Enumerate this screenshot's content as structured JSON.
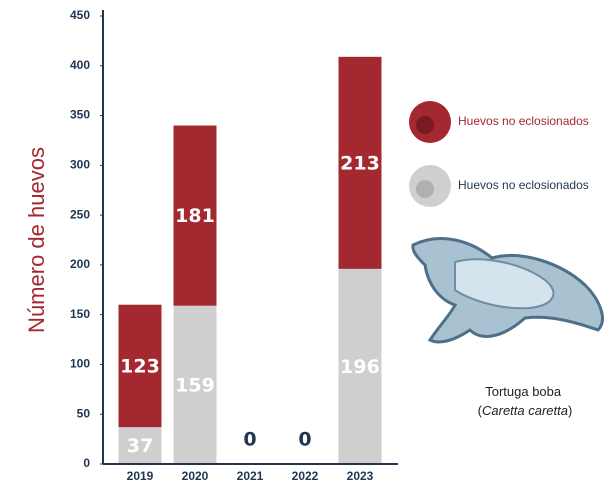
{
  "chart_data": {
    "type": "stacked_bar",
    "y_label": "Número de huevos",
    "categories": [
      "2019",
      "2020",
      "2021",
      "2022",
      "2023"
    ],
    "series": [
      {
        "name": "Huevos no eclosionados",
        "color": "#cfcfcf",
        "values": [
          37,
          159,
          0,
          0,
          196
        ]
      },
      {
        "name": "Huevos no eclosionados",
        "color": "#a4282f",
        "values": [
          123,
          181,
          0,
          0,
          213
        ]
      }
    ],
    "ylim": [
      0,
      450
    ],
    "yticks": [
      0,
      50,
      100,
      150,
      200,
      250,
      300,
      350,
      400,
      450
    ],
    "caption": [
      "Tortuga boba",
      "(",
      "Caretta caretta",
      ")"
    ]
  }
}
